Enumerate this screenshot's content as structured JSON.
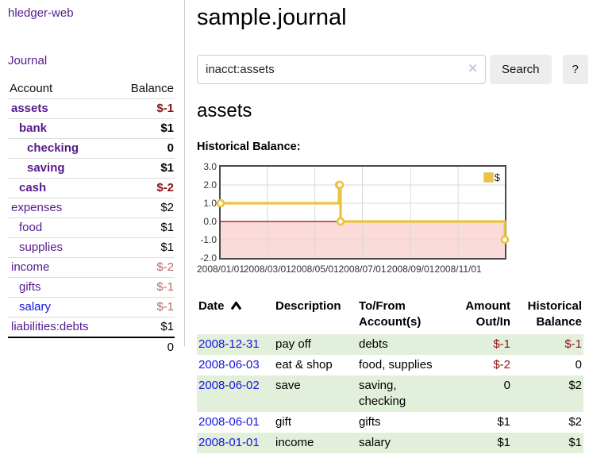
{
  "sidebar": {
    "app_title": "hledger-web",
    "journal_link": "Journal",
    "accounts_table": {
      "headers": {
        "account": "Account",
        "balance": "Balance"
      },
      "rows": [
        {
          "name": "assets",
          "balance": "$-1",
          "level": 1,
          "bold": true,
          "name_color": "purple",
          "balance_style": "neg-strong"
        },
        {
          "name": "bank",
          "balance": "$1",
          "level": 2,
          "bold": true,
          "name_color": "purple",
          "balance_style": "pos"
        },
        {
          "name": "checking",
          "balance": "0",
          "level": 3,
          "bold": true,
          "name_color": "purple",
          "balance_style": "pos"
        },
        {
          "name": "saving",
          "balance": "$1",
          "level": 3,
          "bold": true,
          "name_color": "purple",
          "balance_style": "pos"
        },
        {
          "name": "cash",
          "balance": "$-2",
          "level": 2,
          "bold": true,
          "name_color": "purple",
          "balance_style": "neg-strong"
        },
        {
          "name": "expenses",
          "balance": "$2",
          "level": 1,
          "bold": false,
          "name_color": "purple",
          "balance_style": "pos"
        },
        {
          "name": "food",
          "balance": "$1",
          "level": 2,
          "bold": false,
          "name_color": "purple",
          "balance_style": "pos"
        },
        {
          "name": "supplies",
          "balance": "$1",
          "level": 2,
          "bold": false,
          "name_color": "purple",
          "balance_style": "pos"
        },
        {
          "name": "income",
          "balance": "$-2",
          "level": 1,
          "bold": false,
          "name_color": "purple",
          "balance_style": "neg-soft"
        },
        {
          "name": "gifts",
          "balance": "$-1",
          "level": 2,
          "bold": false,
          "name_color": "purple",
          "balance_style": "neg-soft"
        },
        {
          "name": "salary",
          "balance": "$-1",
          "level": 2,
          "bold": false,
          "name_color": "blue",
          "balance_style": "neg-soft"
        },
        {
          "name": "liabilities:debts",
          "balance": "$1",
          "level": 1,
          "bold": false,
          "name_color": "purple",
          "balance_style": "pos"
        }
      ],
      "total": "0"
    }
  },
  "main": {
    "title": "sample.journal",
    "search": {
      "value": "inacct:assets",
      "clear_icon": "✕",
      "search_button": "Search",
      "help_button": "?"
    },
    "account_heading": "assets",
    "chart_heading": "Historical Balance:"
  },
  "chart_data": {
    "type": "line",
    "step": true,
    "title": "Historical Balance:",
    "series": [
      {
        "name": "$",
        "color": "#edc240",
        "points": [
          [
            "2008-01-01",
            1
          ],
          [
            "2008-06-01",
            2
          ],
          [
            "2008-06-02",
            2
          ],
          [
            "2008-06-03",
            0
          ],
          [
            "2008-12-31",
            -1
          ]
        ]
      }
    ],
    "ylim": [
      -2,
      3
    ],
    "yticks": [
      "3.0",
      "2.0",
      "1.0",
      "0.0",
      "-1.0",
      "-2.0"
    ],
    "xticks": [
      "2008/01/01",
      "2008/03/01",
      "2008/05/01",
      "2008/07/01",
      "2008/09/01",
      "2008/11/01"
    ],
    "x_range": [
      "2008-01-01",
      "2008-12-31"
    ],
    "legend_position": "top-right",
    "grid": true,
    "grid_color": "#d9d9d9",
    "negative_region_color": "#fbdada",
    "zero_line_color": "#a40000",
    "marker_fill": "#ffffff"
  },
  "register_table": {
    "headers": {
      "date": "Date",
      "description": "Description",
      "accounts": "To/From Account(s)",
      "amount": "Amount Out/In",
      "balance": "Historical Balance"
    },
    "sort": {
      "column": "date",
      "direction": "ascending"
    },
    "rows": [
      {
        "date": "2008-12-31",
        "description": "pay off",
        "accounts": "debts",
        "amount": "$-1",
        "balance": "$-1",
        "amount_neg": true,
        "balance_neg": true,
        "shaded": true
      },
      {
        "date": "2008-06-03",
        "description": "eat & shop",
        "accounts": "food, supplies",
        "amount": "$-2",
        "balance": "0",
        "amount_neg": true,
        "balance_neg": false,
        "shaded": false
      },
      {
        "date": "2008-06-02",
        "description": "save",
        "accounts": "saving, checking",
        "amount": "0",
        "balance": "$2",
        "amount_neg": false,
        "balance_neg": false,
        "shaded": true
      },
      {
        "date": "2008-06-01",
        "description": "gift",
        "accounts": "gifts",
        "amount": "$1",
        "balance": "$2",
        "amount_neg": false,
        "balance_neg": false,
        "shaded": false
      },
      {
        "date": "2008-01-01",
        "description": "income",
        "accounts": "salary",
        "amount": "$1",
        "balance": "$1",
        "amount_neg": false,
        "balance_neg": false,
        "shaded": true
      }
    ]
  },
  "colors": {
    "link_purple": "#551a8b",
    "link_blue": "#1414e0",
    "negative_strong": "#8e1212",
    "negative_soft": "#b56a6a",
    "row_shade_green": "#e2efdb",
    "series_yellow": "#edc240",
    "sidebar_divider": "#cccccc",
    "button_bg": "#ededed"
  }
}
